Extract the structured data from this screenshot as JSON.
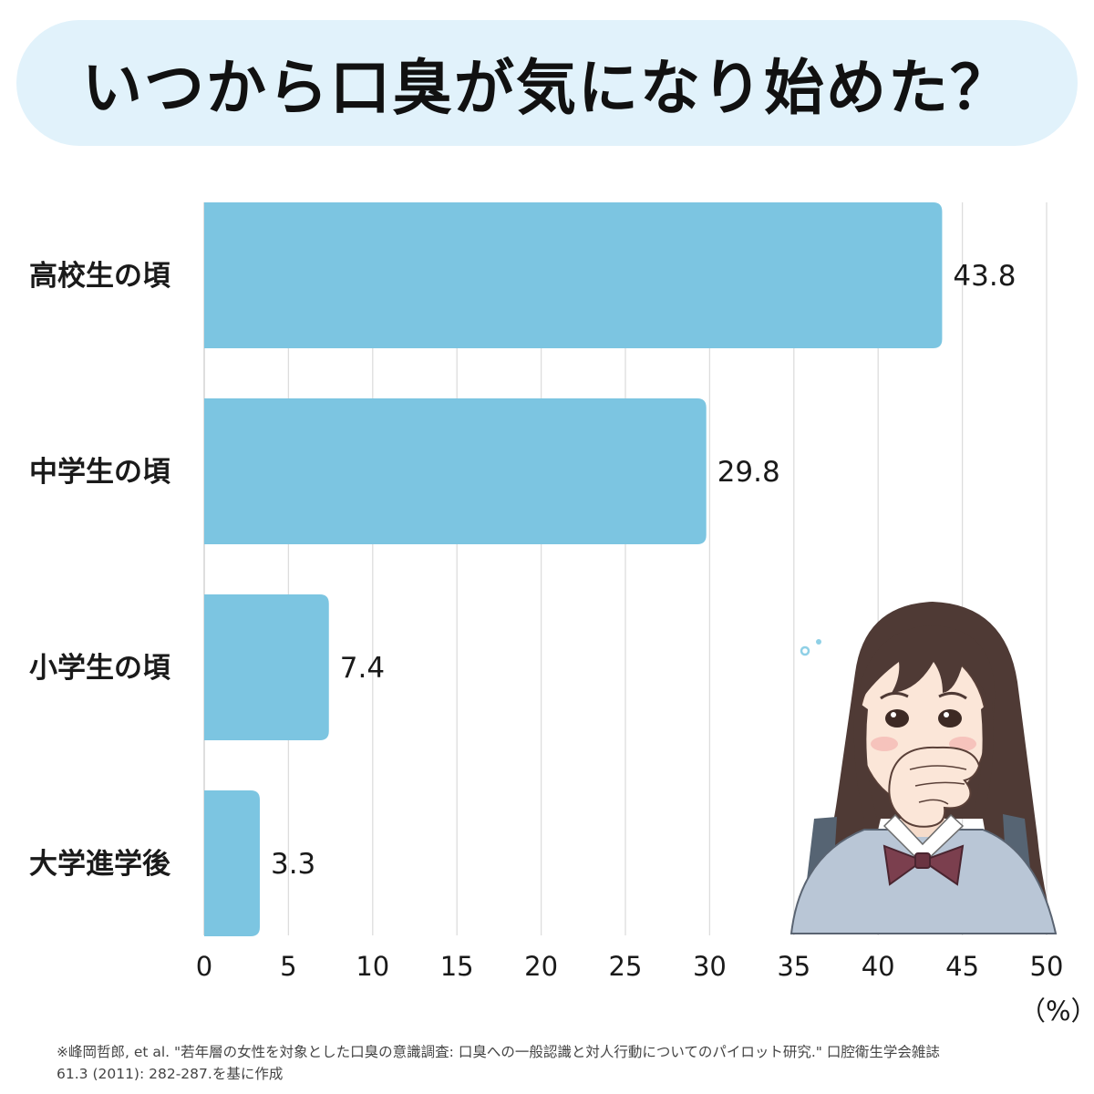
{
  "title": "いつから口臭が気になり始めた？",
  "chart_data": {
    "type": "bar",
    "orientation": "horizontal",
    "categories": [
      "高校生の頃",
      "中学生の頃",
      "小学生の頃",
      "大学進学後"
    ],
    "values": [
      43.8,
      29.8,
      7.4,
      3.3
    ],
    "value_labels": [
      "43.8",
      "29.8",
      "7.4",
      "3.3"
    ],
    "xlim": [
      0,
      50
    ],
    "x_ticks": [
      "0",
      "5",
      "10",
      "15",
      "20",
      "25",
      "30",
      "35",
      "40",
      "45",
      "50"
    ],
    "unit": "（%）",
    "grid": true,
    "bar_color": "#7cc5e1"
  },
  "source": {
    "line1": "※峰岡哲郎, et al. \"若年層の女性を対象とした口臭の意識調査: 口臭への一般認識と対人行動についてのパイロット研究.\" 口腔衛生学会雑誌",
    "line2": "61.3 (2011): 282-287.を基に作成"
  },
  "colors": {
    "banner": "#e1f2fb",
    "bar": "#7cc5e1",
    "grid": "#dddddd"
  },
  "illustration": {
    "icon": "worried-schoolgirl-covering-mouth"
  }
}
